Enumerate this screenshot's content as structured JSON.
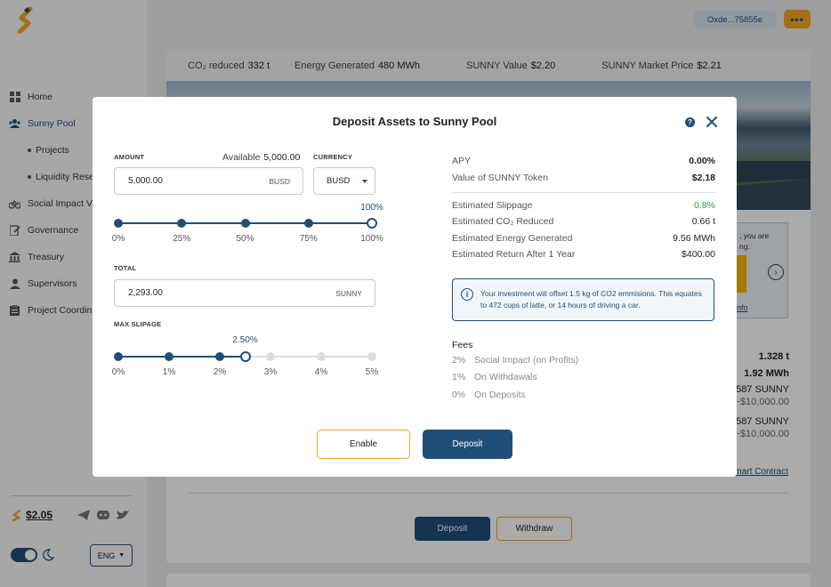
{
  "sidebar": {
    "items": [
      {
        "label": "Home",
        "icon": "dashboard-icon"
      },
      {
        "label": "Sunny Pool",
        "icon": "users-icon"
      },
      {
        "label": "Projects"
      },
      {
        "label": "Liquidity Reserve"
      },
      {
        "label": "Social Impact Ventures",
        "icon": "bike-icon"
      },
      {
        "label": "Governance",
        "icon": "edit-document-icon"
      },
      {
        "label": "Treasury",
        "icon": "bank-icon"
      },
      {
        "label": "Supervisors",
        "icon": "person-icon"
      },
      {
        "label": "Project Coordinators",
        "icon": "clipboard-icon"
      }
    ],
    "token_price": "$2.05",
    "language": "ENG"
  },
  "topbar": {
    "wallet": "Oxde...75855e",
    "more": "•••"
  },
  "stats": [
    {
      "label": "CO₂ reduced",
      "value": "332 t"
    },
    {
      "label": "Energy Generated",
      "value": "480 MWh"
    },
    {
      "label": "SUNNY Value",
      "value": "$2.20"
    },
    {
      "label": "SUNNY Market Price",
      "value": "$2.21"
    }
  ],
  "background": {
    "info_text_1": ", you are",
    "info_text_2": "ng:",
    "info_link": "nfo",
    "row1": "1.328 t",
    "row2": "1.92 MWh",
    "row3": ",587 SUNNY",
    "row3_sub": "~$10,000.00",
    "row4": ",587 SUNNY",
    "row4_sub": "~$10,000.00",
    "smart_contract": "mart Contract",
    "deposit_label": "Deposit",
    "withdraw_label": "Withdraw"
  },
  "modal": {
    "title": "Deposit Assets to Sunny Pool",
    "amount_label": "AMOUNT",
    "available_label": "Available",
    "available_value": "5,000.00",
    "amount_value": "5,000.00",
    "amount_unit": "BUSD",
    "currency_label": "CURRENCY",
    "currency_value": "BUSD",
    "amount_slider": {
      "value_pct": 100,
      "current_label": "100%",
      "ticks": [
        "0%",
        "25%",
        "50%",
        "75%",
        "100%"
      ]
    },
    "total_label": "TOTAL",
    "total_value": "2,293.00",
    "total_unit": "SUNNY",
    "slippage_label": "MAX SLIPAGE",
    "slippage_slider": {
      "value_pct": 2.5,
      "current_label": "2.50%",
      "ticks": [
        "0%",
        "1%",
        "2%",
        "3%",
        "4%",
        "5%"
      ]
    },
    "details": [
      {
        "label": "APY",
        "value": "0.00%",
        "style": "bold"
      },
      {
        "label": "Value of SUNNY Token",
        "value": "$2.18",
        "style": "bold"
      },
      {
        "label": "Estimated Slippage",
        "value": "0.8%",
        "style": "green"
      },
      {
        "label": "Estimated CO₂ Reduced",
        "value": "0.66 t",
        "style": ""
      },
      {
        "label": "Estimated Energy Generated",
        "value": "9.56 MWh",
        "style": ""
      },
      {
        "label": "Estimated Return After 1 Year",
        "value": "$400.00",
        "style": ""
      }
    ],
    "notice": "Your investment will offset 1.5 kg of CO2 emmisions. This equates to 472 cups of latte, or 14 hours of driving a car.",
    "fees_title": "Fees",
    "fees": [
      {
        "pct": "2%",
        "label": "Social Impact (on Profits)"
      },
      {
        "pct": "1%",
        "label": "On Withdawals"
      },
      {
        "pct": "0%",
        "label": "On Deposits"
      }
    ],
    "enable_label": "Enable",
    "deposit_label": "Deposit"
  },
  "colors": {
    "primary": "#1f4e79",
    "accent": "#f5a623",
    "positive": "#2e9b45"
  }
}
